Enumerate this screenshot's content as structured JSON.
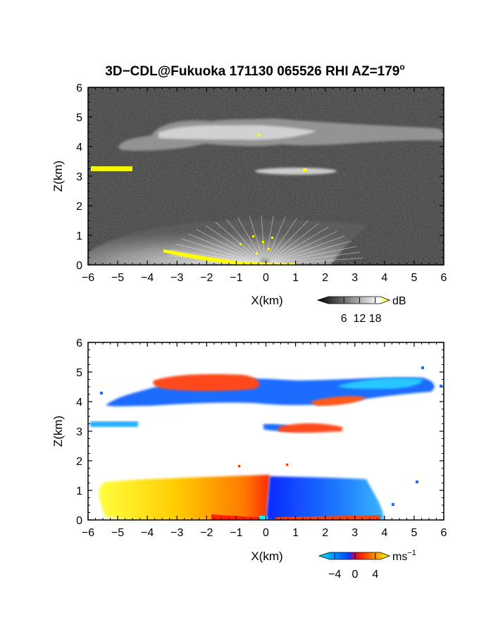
{
  "title": "3D−CDL@Fukuoka 171130 065526 RHI AZ=179",
  "title_degree": "o",
  "chart_data": [
    {
      "type": "heatmap",
      "name": "backscatter",
      "xlabel": "X(km)",
      "ylabel": "Z(km)",
      "xlim": [
        -6,
        6
      ],
      "ylim": [
        0,
        6
      ],
      "x_ticks": [
        "−6",
        "−5",
        "−4",
        "−3",
        "−2",
        "−1",
        "0",
        "1",
        "2",
        "3",
        "4",
        "5",
        "6"
      ],
      "y_ticks": [
        "0",
        "1",
        "2",
        "3",
        "4",
        "5",
        "6"
      ],
      "colorbar": {
        "unit": "dB",
        "ticks": [
          "6",
          "12",
          "18"
        ],
        "range": [
          0,
          20
        ],
        "palette": [
          "#000000",
          "#ffffff",
          "#ffff00"
        ]
      },
      "features": [
        {
          "label": "upper cloud layer",
          "x": [
            -5.2,
            6.0
          ],
          "z": [
            3.9,
            5.0
          ],
          "level_db": 12
        },
        {
          "label": "mid cloud",
          "x": [
            -0.1,
            2.6
          ],
          "z": [
            3.0,
            3.3
          ],
          "level_db": 11
        },
        {
          "label": "left cloud (saturated)",
          "x": [
            -6.0,
            -4.5
          ],
          "z": [
            3.1,
            3.3
          ],
          "level_db": 19
        },
        {
          "label": "boundary layer",
          "x": [
            -6.0,
            3.5
          ],
          "z": [
            0.0,
            1.5
          ],
          "level_db": 14
        },
        {
          "label": "ground return (saturated)",
          "x": [
            -3.5,
            1.0
          ],
          "z": [
            0.0,
            0.55
          ],
          "level_db": 19
        }
      ]
    },
    {
      "type": "heatmap",
      "name": "doppler_velocity",
      "xlabel": "X(km)",
      "ylabel": "Z(km)",
      "xlim": [
        -6,
        6
      ],
      "ylim": [
        0,
        6
      ],
      "x_ticks": [
        "−6",
        "−5",
        "−4",
        "−3",
        "−2",
        "−1",
        "0",
        "1",
        "2",
        "3",
        "4",
        "5",
        "6"
      ],
      "y_ticks": [
        "0",
        "1",
        "2",
        "3",
        "4",
        "5",
        "6"
      ],
      "colorbar": {
        "unit": "ms",
        "unit_exp": "−1",
        "ticks": [
          "−4",
          "0",
          "4"
        ],
        "range": [
          -5,
          5
        ],
        "palette": [
          "#00e5ff",
          "#0040ff",
          "#ff0000",
          "#ffff00"
        ]
      },
      "features": [
        {
          "label": "upper cloud, left",
          "x": [
            -3.8,
            0.0
          ],
          "z": [
            4.3,
            4.9
          ],
          "velocity": 1.5
        },
        {
          "label": "upper cloud, right",
          "x": [
            -5.4,
            6.0
          ],
          "z": [
            3.9,
            4.8
          ],
          "velocity": -2.5
        },
        {
          "label": "mid cloud",
          "x": [
            -0.1,
            2.6
          ],
          "z": [
            3.0,
            3.3
          ],
          "velocity": 1.5
        },
        {
          "label": "left cloud",
          "x": [
            -6.0,
            -4.4
          ],
          "z": [
            3.15,
            3.35
          ],
          "velocity": -3.5
        },
        {
          "label": "boundary layer, left",
          "x": [
            -5.8,
            0.2
          ],
          "z": [
            0.0,
            1.5
          ],
          "velocity": 3.0
        },
        {
          "label": "boundary layer, right",
          "x": [
            0.2,
            4.5
          ],
          "z": [
            0.0,
            1.4
          ],
          "velocity": -3.0
        }
      ]
    }
  ]
}
